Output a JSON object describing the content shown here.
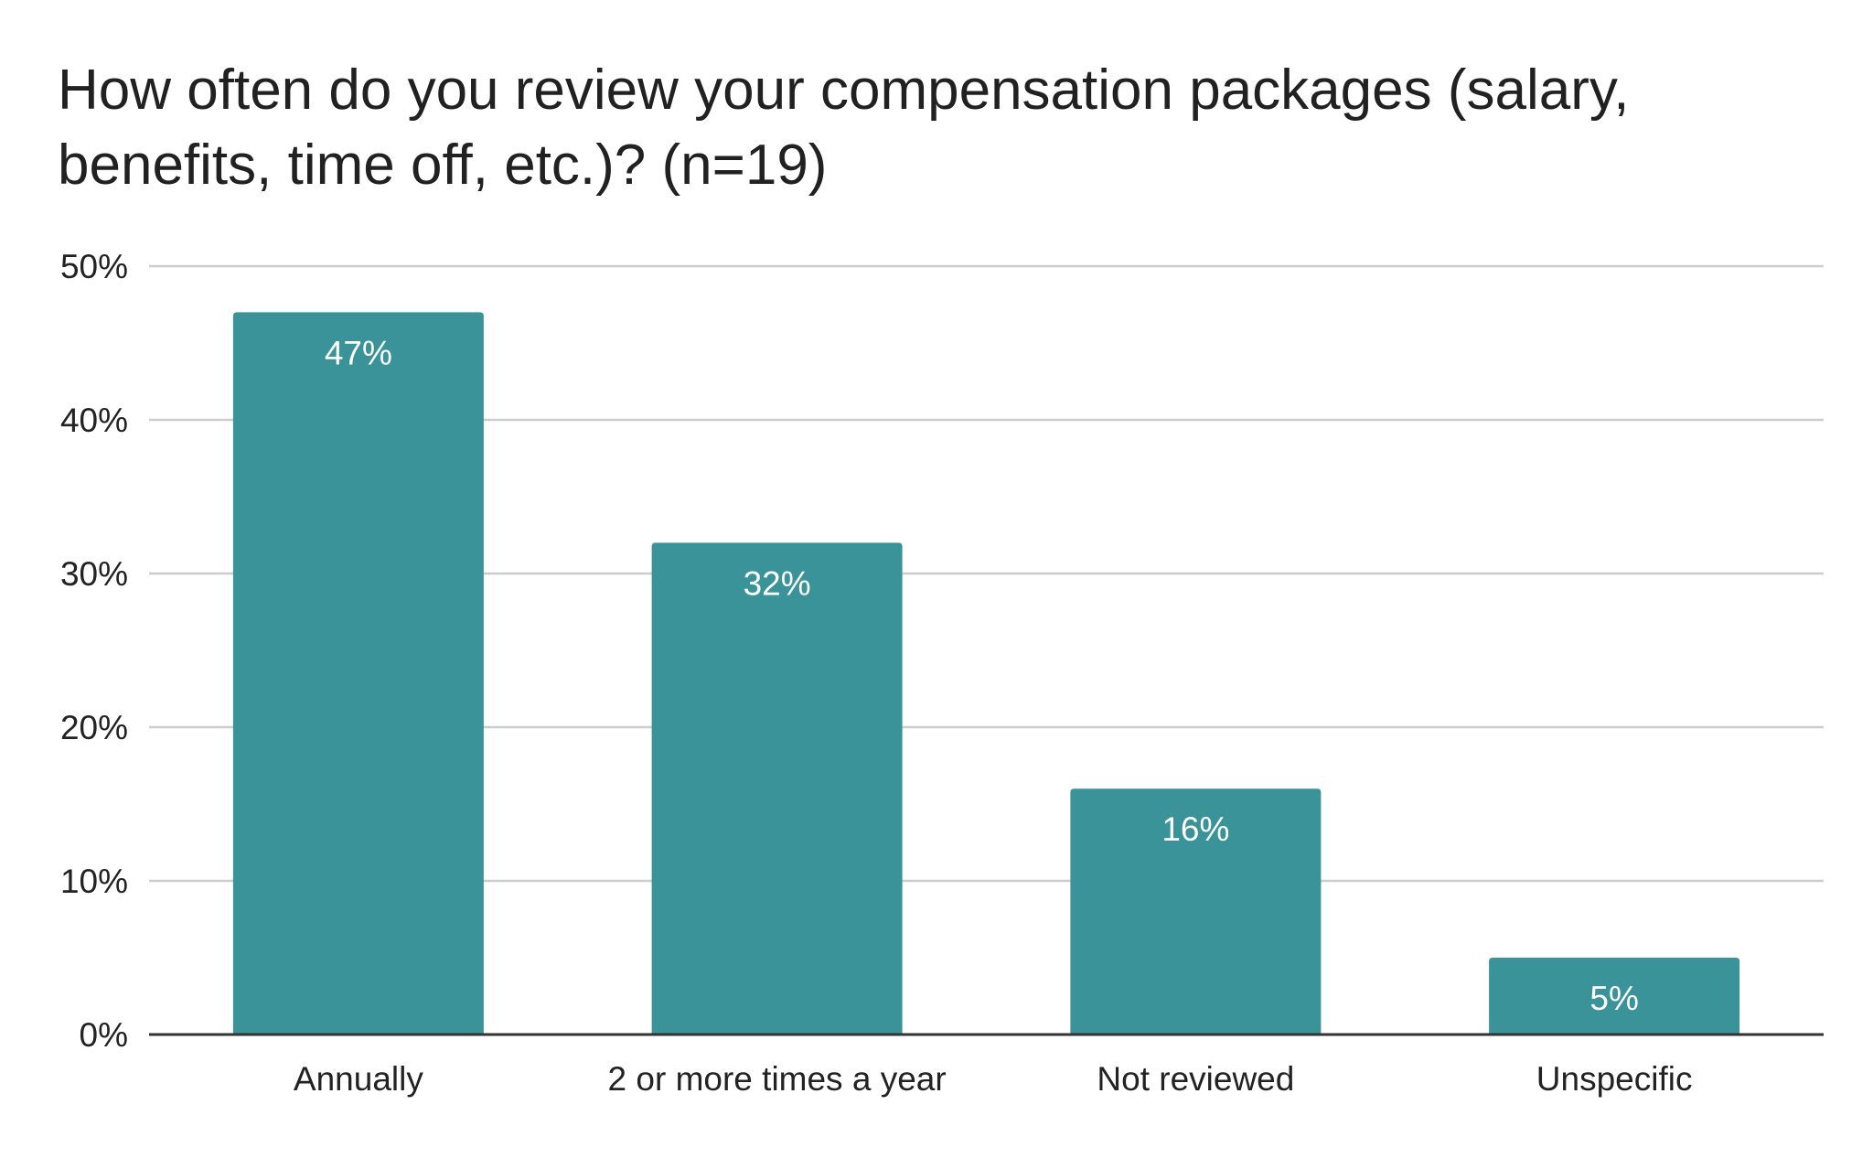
{
  "chart_data": {
    "type": "bar",
    "title": "How often do you review your compensation packages (salary, benefits, time off, etc.)? (n=19)",
    "categories": [
      "Annually",
      "2 or more times a year",
      "Not reviewed",
      "Unspecific"
    ],
    "values": [
      47,
      32,
      16,
      5
    ],
    "data_labels": [
      "47%",
      "32%",
      "16%",
      "5%"
    ],
    "ylim": [
      0,
      50
    ],
    "yticks": [
      0,
      10,
      20,
      30,
      40,
      50
    ],
    "ytick_labels": [
      "0%",
      "10%",
      "20%",
      "30%",
      "40%",
      "50%"
    ],
    "xlabel": "",
    "ylabel": "",
    "grid": true,
    "legend": "none",
    "colors": {
      "bar": "#3a9399",
      "grid": "#cccccc",
      "axis": "#333333"
    }
  }
}
